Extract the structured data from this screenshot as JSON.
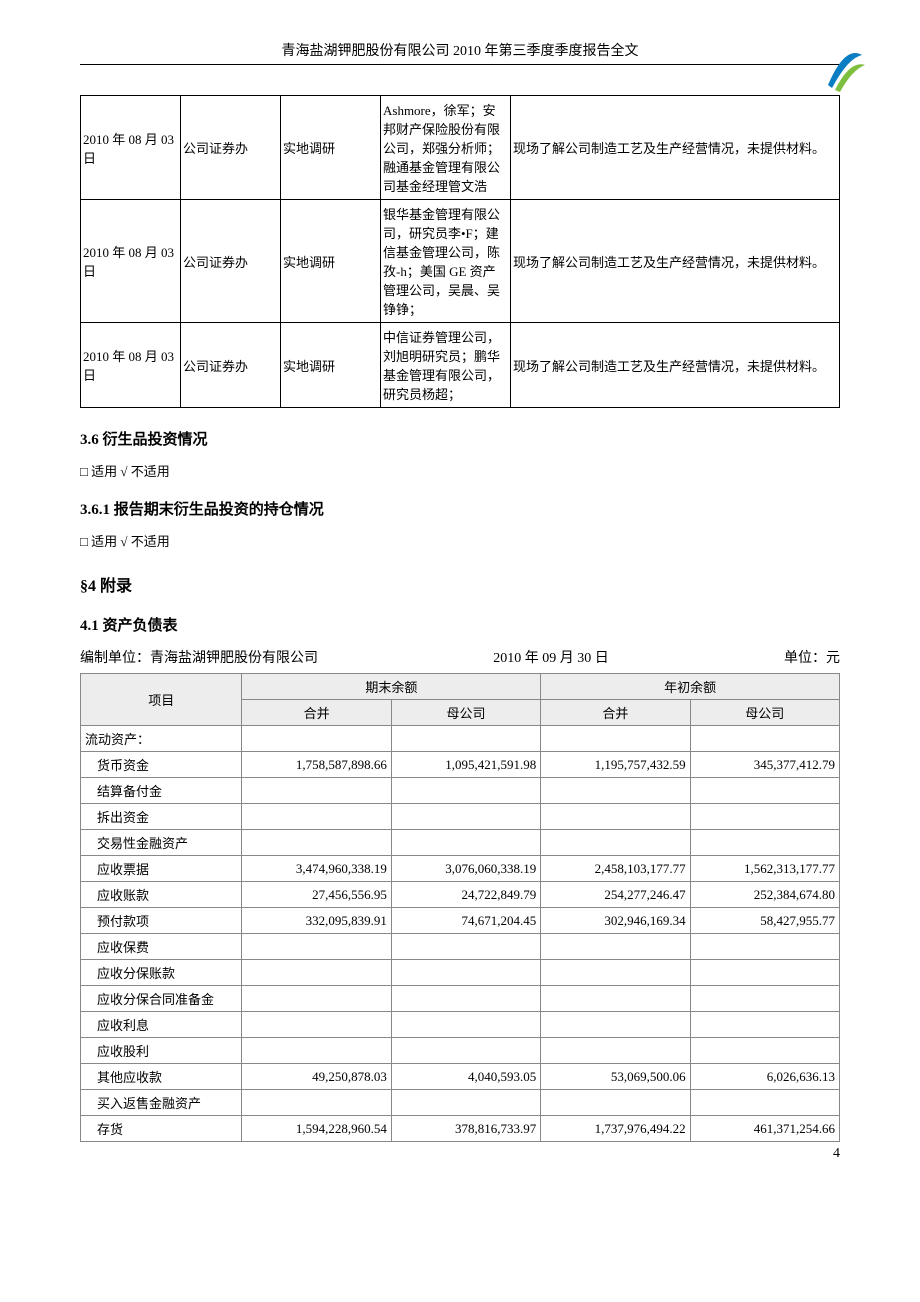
{
  "header_title": "青海盐湖钾肥股份有限公司 2010 年第三季度季度报告全文",
  "logo_colors": {
    "swoosh1": "#0b7dc2",
    "swoosh2": "#7fbf3f"
  },
  "table1": {
    "rows": [
      {
        "date": "2010 年 08 月 03 日",
        "dept": "公司证券办",
        "type": "实地调研",
        "attendees": "Ashmore，徐军；安邦财产保险股份有限公司，郑强分析师；融通基金管理有限公司基金经理管文浩",
        "content": "现场了解公司制造工艺及生产经营情况，未提供材料。"
      },
      {
        "date": "2010 年 08 月 03 日",
        "dept": "公司证券办",
        "type": "实地调研",
        "attendees": "银华基金管理有限公司，研究员李•F；建信基金管理公司，陈孜-h；美国 GE 资产管理公司，吴晨、吴铮铮；",
        "content": "现场了解公司制造工艺及生产经营情况，未提供材料。"
      },
      {
        "date": "2010 年 08 月 03 日",
        "dept": "公司证券办",
        "type": "实地调研",
        "attendees": "中信证券管理公司，刘旭明研究员；鹏华基金管理有限公司，研究员杨超；",
        "content": "现场了解公司制造工艺及生产经营情况，未提供材料。"
      }
    ]
  },
  "sec36": "3.6 衍生品投资情况",
  "chk36": "□ 适用  √ 不适用",
  "sec361": "3.6.1 报告期末衍生品投资的持仓情况",
  "chk361": "□ 适用  √ 不适用",
  "sec4": "§4  附录",
  "sec41": "4.1 资产负债表",
  "meta": {
    "prep": "编制单位：青海盐湖钾肥股份有限公司",
    "date": "2010 年 09 月 30 日",
    "unit": "单位：元"
  },
  "table2": {
    "headers": {
      "item": "项目",
      "end": "期末余额",
      "begin": "年初余额",
      "cons": "合并",
      "parent": "母公司"
    },
    "rows": [
      {
        "label": "流动资产：",
        "indent": false,
        "v": [
          "",
          "",
          "",
          ""
        ]
      },
      {
        "label": "货币资金",
        "indent": true,
        "v": [
          "1,758,587,898.66",
          "1,095,421,591.98",
          "1,195,757,432.59",
          "345,377,412.79"
        ]
      },
      {
        "label": "结算备付金",
        "indent": true,
        "v": [
          "",
          "",
          "",
          ""
        ]
      },
      {
        "label": "拆出资金",
        "indent": true,
        "v": [
          "",
          "",
          "",
          ""
        ]
      },
      {
        "label": "交易性金融资产",
        "indent": true,
        "v": [
          "",
          "",
          "",
          ""
        ]
      },
      {
        "label": "应收票据",
        "indent": true,
        "v": [
          "3,474,960,338.19",
          "3,076,060,338.19",
          "2,458,103,177.77",
          "1,562,313,177.77"
        ]
      },
      {
        "label": "应收账款",
        "indent": true,
        "v": [
          "27,456,556.95",
          "24,722,849.79",
          "254,277,246.47",
          "252,384,674.80"
        ]
      },
      {
        "label": "预付款项",
        "indent": true,
        "v": [
          "332,095,839.91",
          "74,671,204.45",
          "302,946,169.34",
          "58,427,955.77"
        ]
      },
      {
        "label": "应收保费",
        "indent": true,
        "v": [
          "",
          "",
          "",
          ""
        ]
      },
      {
        "label": "应收分保账款",
        "indent": true,
        "v": [
          "",
          "",
          "",
          ""
        ]
      },
      {
        "label": "应收分保合同准备金",
        "indent": true,
        "v": [
          "",
          "",
          "",
          ""
        ]
      },
      {
        "label": "应收利息",
        "indent": true,
        "v": [
          "",
          "",
          "",
          ""
        ]
      },
      {
        "label": "应收股利",
        "indent": true,
        "v": [
          "",
          "",
          "",
          ""
        ]
      },
      {
        "label": "其他应收款",
        "indent": true,
        "v": [
          "49,250,878.03",
          "4,040,593.05",
          "53,069,500.06",
          "6,026,636.13"
        ]
      },
      {
        "label": "买入返售金融资产",
        "indent": true,
        "v": [
          "",
          "",
          "",
          ""
        ]
      },
      {
        "label": "存货",
        "indent": true,
        "v": [
          "1,594,228,960.54",
          "378,816,733.97",
          "1,737,976,494.22",
          "461,371,254.66"
        ]
      }
    ]
  },
  "page_num": "4"
}
